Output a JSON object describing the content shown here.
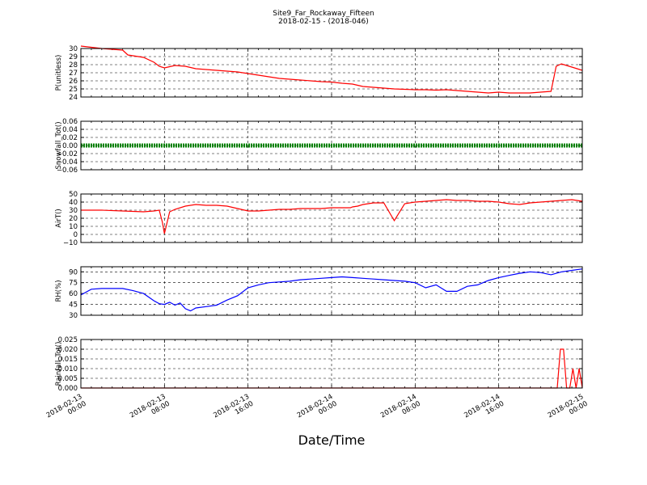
{
  "figure": {
    "title": "Site9_Far_Rockaway_Fifteen",
    "subtitle": "2018-02-15 - (2018-046)",
    "xlabel": "Date/Time"
  },
  "chart_data": [
    {
      "type": "line",
      "ylabel": "P(unitless)",
      "ylim": [
        24,
        30
      ],
      "yticks": [
        "24",
        "25",
        "26",
        "27",
        "28",
        "29",
        "30"
      ],
      "xticks": [
        "2018-02-13 00:00",
        "2018-02-13 08:00",
        "2018-02-13 16:00",
        "2018-02-14 00:00",
        "2018-02-14 08:00",
        "2018-02-14 16:00",
        "2018-02-15 00:00"
      ],
      "grid": true,
      "series": [
        {
          "color": "#ff0000",
          "x": [
            0,
            2,
            3,
            4,
            4.5,
            5,
            6,
            7,
            7.5,
            8,
            9,
            10,
            11,
            12,
            13,
            14,
            15,
            16,
            17,
            18,
            19,
            20,
            21,
            22,
            23,
            24,
            25,
            26,
            27,
            28,
            29,
            30,
            31,
            32,
            33,
            34,
            35,
            36,
            37,
            38,
            39,
            40,
            41,
            42,
            43,
            44,
            45,
            45.5,
            46,
            46.5,
            47,
            48
          ],
          "y": [
            30.3,
            30,
            29.9,
            29.8,
            29.2,
            29.1,
            28.9,
            28.3,
            27.8,
            27.6,
            27.9,
            27.8,
            27.5,
            27.4,
            27.3,
            27.2,
            27.1,
            26.9,
            26.7,
            26.5,
            26.3,
            26.2,
            26.1,
            26.0,
            25.9,
            25.85,
            25.7,
            25.6,
            25.3,
            25.2,
            25.1,
            25.0,
            24.95,
            24.9,
            24.9,
            24.85,
            24.9,
            24.8,
            24.7,
            24.6,
            24.5,
            24.6,
            24.5,
            24.5,
            24.5,
            24.6,
            24.7,
            27.8,
            28.1,
            27.9,
            27.7,
            27.3
          ]
        }
      ]
    },
    {
      "type": "line",
      "ylabel": "Snowfall_Tot()",
      "ylim": [
        -0.06,
        0.06
      ],
      "yticks": [
        "−0.06",
        "−0.04",
        "−0.02",
        "0.00",
        "0.02",
        "0.04",
        "0.06"
      ],
      "xticks": [
        "2018-02-13 00:00",
        "2018-02-13 08:00",
        "2018-02-13 16:00",
        "2018-02-14 00:00",
        "2018-02-14 08:00",
        "2018-02-14 16:00",
        "2018-02-15 00:00"
      ],
      "grid": true,
      "series": [
        {
          "color": "#008000",
          "x": [
            0,
            48
          ],
          "y": [
            0,
            0
          ]
        }
      ]
    },
    {
      "type": "line",
      "ylabel": "AirT()",
      "ylim": [
        -10,
        50
      ],
      "yticks": [
        "−10",
        "0",
        "10",
        "20",
        "30",
        "40",
        "50"
      ],
      "xticks": [
        "2018-02-13 00:00",
        "2018-02-13 08:00",
        "2018-02-13 16:00",
        "2018-02-14 00:00",
        "2018-02-14 08:00",
        "2018-02-14 16:00",
        "2018-02-15 00:00"
      ],
      "grid": true,
      "series": [
        {
          "color": "#ff0000",
          "x": [
            0,
            2,
            4,
            6,
            7,
            7.5,
            7.8,
            8,
            8.5,
            9,
            10,
            11,
            12,
            13,
            14,
            15,
            16,
            17,
            18,
            19,
            20,
            21,
            22,
            23,
            24,
            25,
            25.5,
            25.8,
            26,
            26.5,
            27,
            28,
            29,
            30,
            31,
            32,
            33,
            34,
            35,
            36,
            37,
            38,
            39,
            40,
            41,
            42,
            43,
            44,
            45,
            46,
            47,
            48
          ],
          "y": [
            30,
            30,
            29,
            28,
            29,
            30,
            15,
            1,
            28,
            31,
            35,
            37,
            36,
            36,
            35,
            32,
            29,
            29,
            30,
            31,
            31,
            32,
            32,
            32,
            33,
            33,
            33,
            33,
            34,
            35,
            37,
            39,
            39,
            17,
            38,
            40,
            41,
            42,
            43,
            42,
            42,
            41,
            41,
            40,
            38,
            37,
            39,
            40,
            41,
            42,
            43,
            41
          ]
        }
      ]
    },
    {
      "type": "line",
      "ylabel": "RH(%)",
      "ylim": [
        30,
        97
      ],
      "yticks": [
        "30",
        "45",
        "60",
        "75",
        "90"
      ],
      "yticks_values": [
        30,
        45,
        60,
        75,
        90
      ],
      "xticks": [
        "2018-02-13 00:00",
        "2018-02-13 08:00",
        "2018-02-13 16:00",
        "2018-02-14 00:00",
        "2018-02-14 08:00",
        "2018-02-14 16:00",
        "2018-02-15 00:00"
      ],
      "grid": true,
      "series": [
        {
          "color": "#0000ff",
          "x": [
            0,
            1,
            2,
            3,
            4,
            5,
            6,
            7,
            7.5,
            8,
            8.5,
            9,
            9.5,
            10,
            10.5,
            11,
            12,
            13,
            14,
            15,
            16,
            17,
            18,
            19,
            20,
            21,
            22,
            23,
            24,
            25,
            26,
            27,
            28,
            29,
            30,
            31,
            32,
            33,
            34,
            35,
            36,
            37,
            38,
            39,
            40,
            41,
            42,
            43,
            44,
            45,
            46,
            47,
            48
          ],
          "y": [
            58,
            66,
            67,
            67,
            67,
            64,
            60,
            50,
            46,
            45,
            48,
            44,
            47,
            39,
            36,
            40,
            42,
            44,
            51,
            57,
            68,
            72,
            75,
            76,
            77,
            79,
            80,
            81,
            82,
            83,
            82,
            81,
            80,
            79,
            78,
            77,
            75,
            68,
            72,
            63,
            63,
            70,
            72,
            78,
            82,
            85,
            88,
            90,
            89,
            86,
            90,
            92,
            94
          ]
        }
      ]
    },
    {
      "type": "line",
      "ylabel": "Rainfall_Tot()",
      "ylim": [
        0,
        0.025
      ],
      "yticks": [
        "0.000",
        "0.005",
        "0.010",
        "0.015",
        "0.020",
        "0.025"
      ],
      "xticks": [
        "2018-02-13 00:00",
        "2018-02-13 08:00",
        "2018-02-13 16:00",
        "2018-02-14 00:00",
        "2018-02-14 08:00",
        "2018-02-14 16:00",
        "2018-02-15 00:00"
      ],
      "grid": true,
      "series": [
        {
          "color": "#ff0000",
          "x": [
            0,
            45.6,
            45.9,
            46.2,
            46.5,
            46.8,
            47.1,
            47.4,
            47.7,
            48
          ],
          "y": [
            0,
            0,
            0.02,
            0.02,
            0,
            0,
            0.01,
            0,
            0.01,
            0
          ]
        }
      ]
    }
  ]
}
